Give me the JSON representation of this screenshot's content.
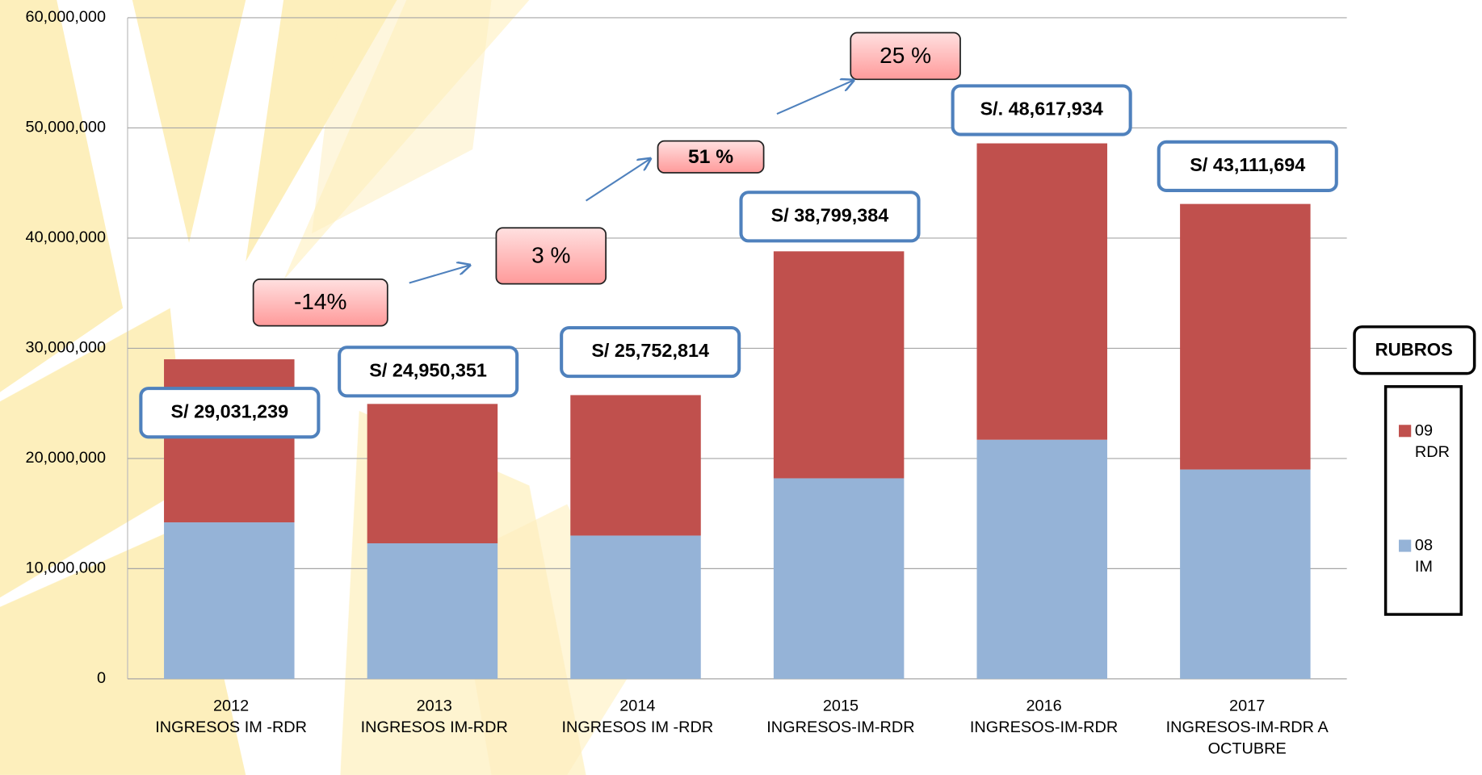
{
  "chart_data": {
    "type": "bar",
    "stacked": true,
    "categories": [
      "2012\nINGRESOS IM -RDR",
      "2013\nINGRESOS IM-RDR",
      "2014\nINGRESOS  IM -RDR",
      "2015\nINGRESOS-IM-RDR",
      "2016\nINGRESOS-IM-RDR",
      "2017\nINGRESOS-IM-RDR A\nOCTUBRE"
    ],
    "series": [
      {
        "name": "08\nIM",
        "color": "#95b3d7",
        "values": [
          14200000,
          12300000,
          13000000,
          18200000,
          21700000,
          19000000
        ]
      },
      {
        "name": "09\nRDR",
        "color": "#c0504d",
        "values": [
          14800000,
          12650000,
          12750000,
          20600000,
          26900000,
          24100000
        ]
      }
    ],
    "ylim": [
      0,
      60000000
    ],
    "yticks": [
      0,
      {
        "value": 10000000,
        "label": "10,000,000"
      },
      {
        "value": 20000000,
        "label": "20,000,000"
      },
      {
        "value": 30000000,
        "label": "30,000,000"
      },
      {
        "value": 40000000,
        "label": "40,000,000"
      },
      {
        "value": 50000000,
        "label": "50,000,000"
      },
      {
        "value": 60000000,
        "label": "60,000,000"
      }
    ],
    "grid": true,
    "legend_title": "RUBROS",
    "legend_position": "right",
    "total_labels": [
      "S/ 29,031,239",
      "S/ 24,950,351",
      "S/ 25,752,814",
      "S/ 38,799,384",
      "S/. 48,617,934",
      "S/ 43,111,694"
    ],
    "growth_labels": [
      "-14%",
      "3 %",
      "51 %",
      "25  %"
    ]
  }
}
